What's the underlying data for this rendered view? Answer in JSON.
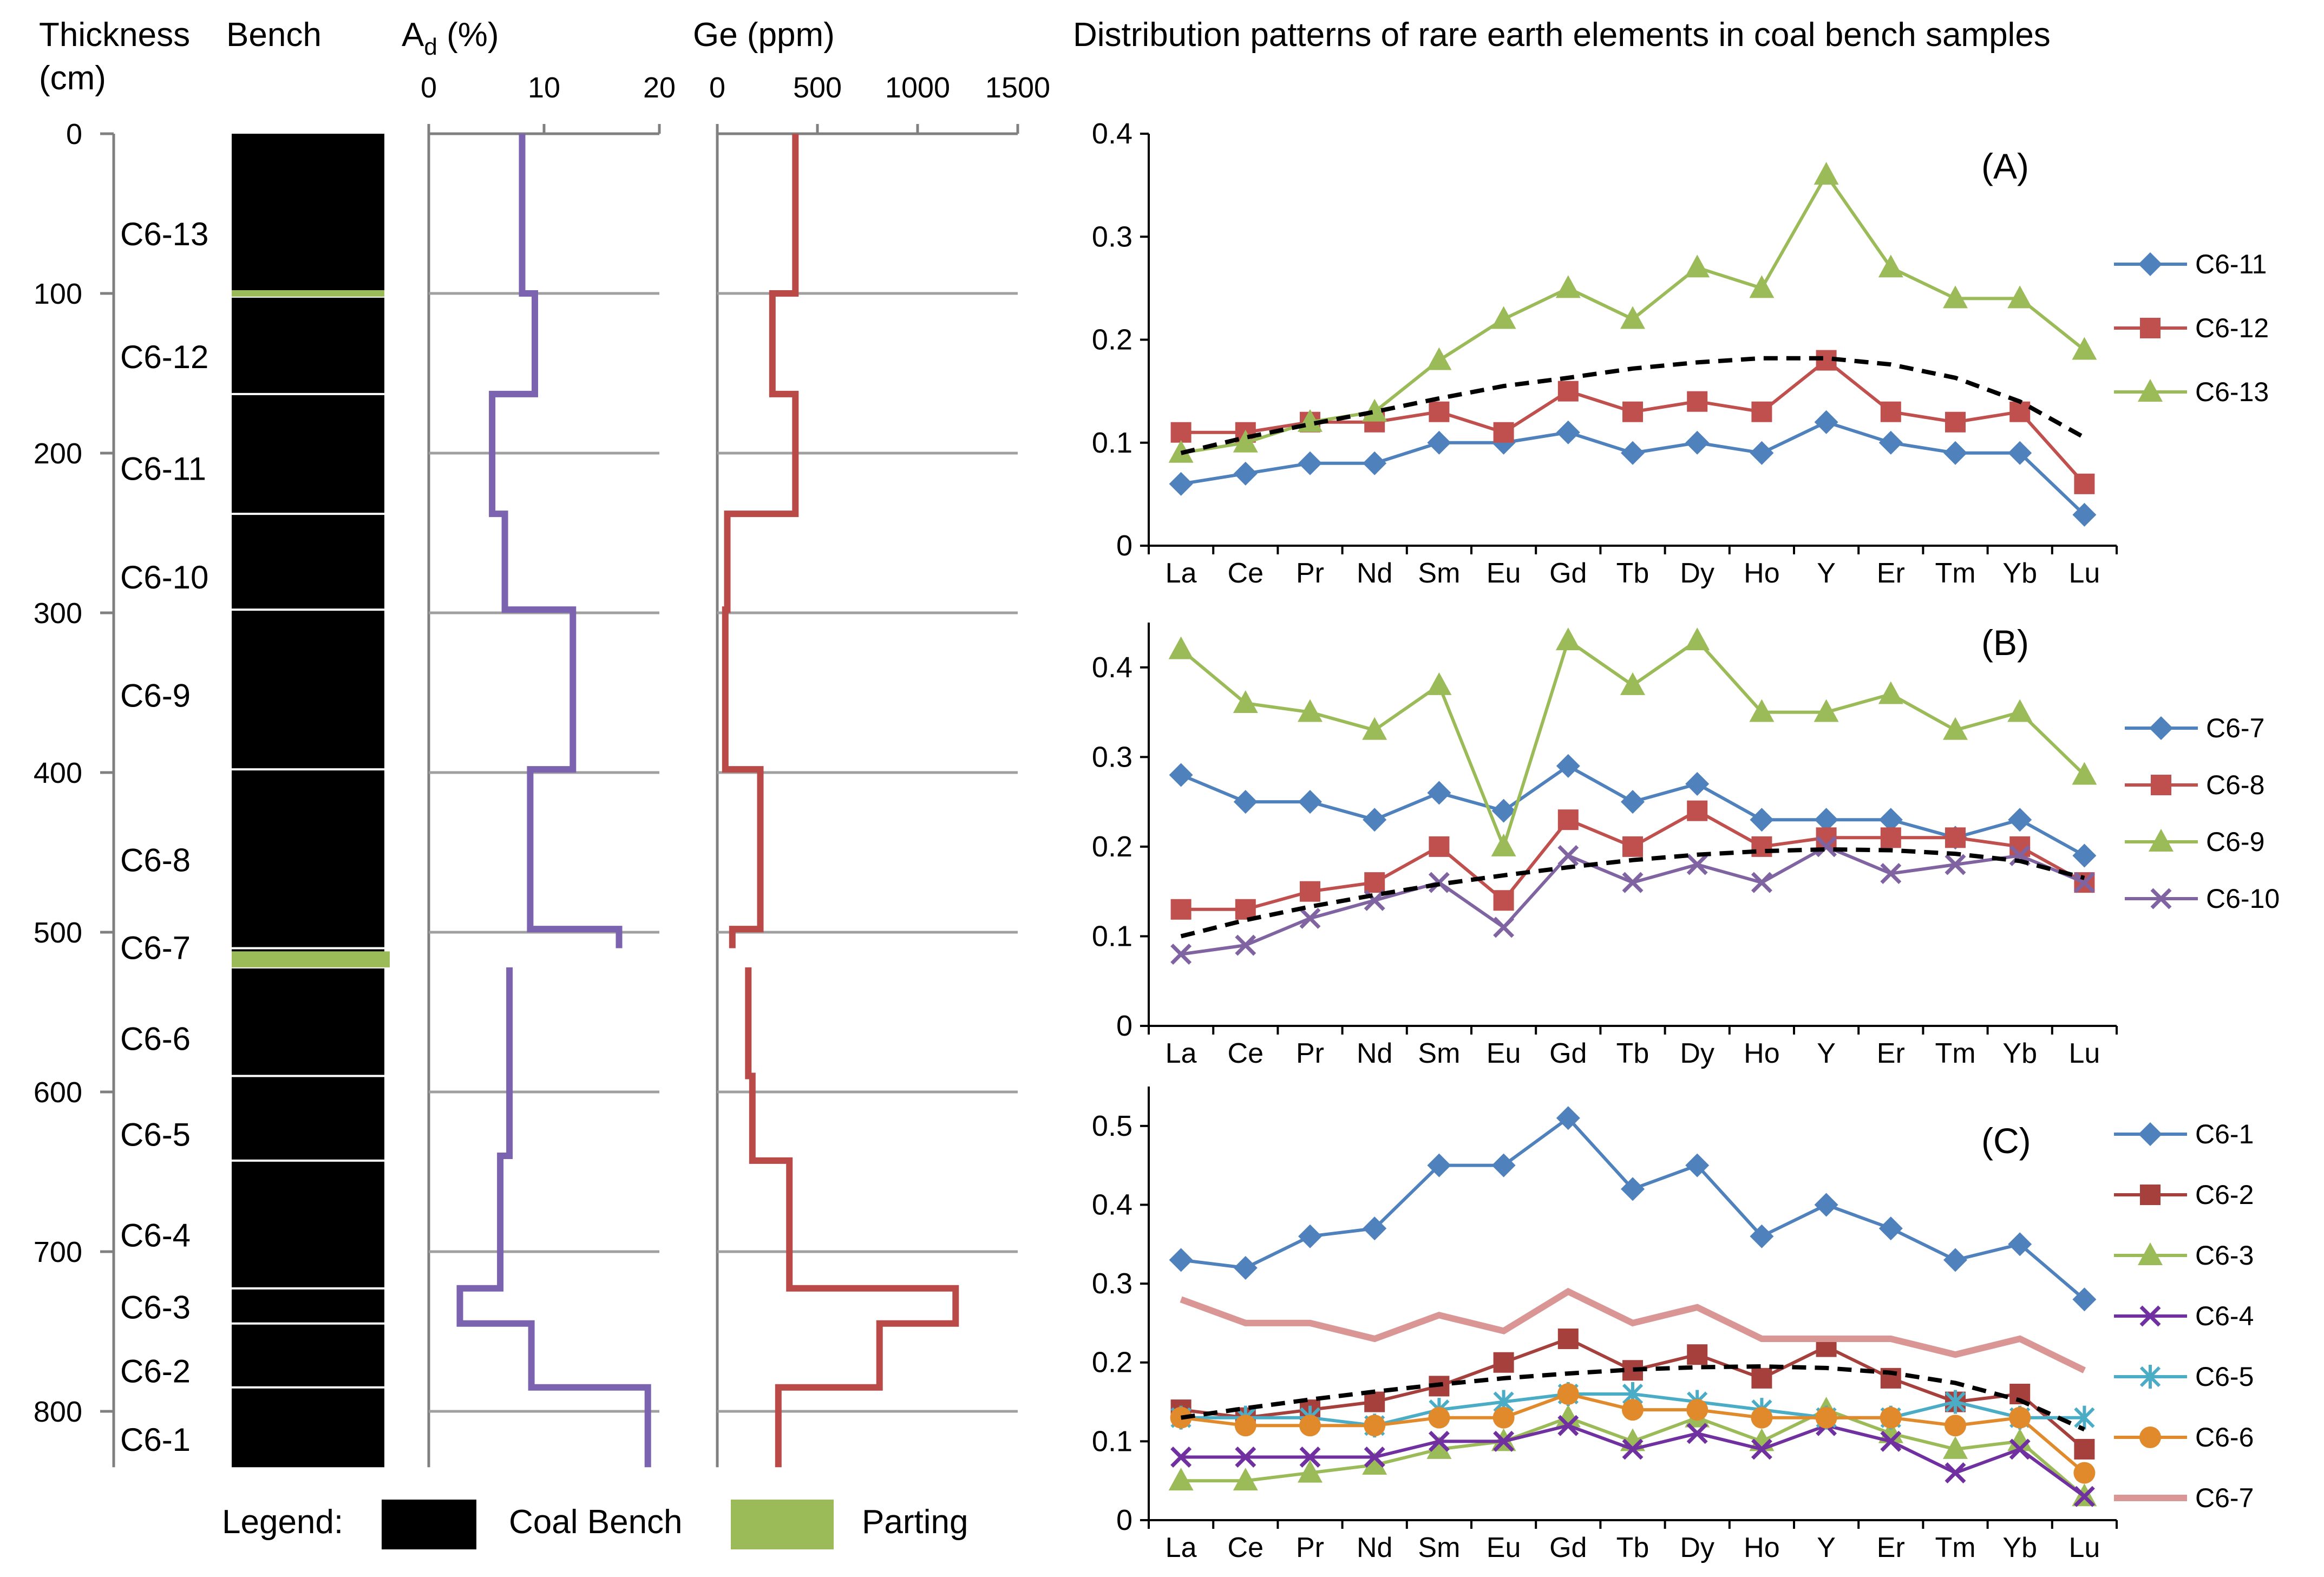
{
  "title": "Distribution patterns of rare earth elements in coal bench samples",
  "column_profile": {
    "headers": {
      "thickness": "Thickness",
      "thickness_unit": "(cm)",
      "bench": "Bench",
      "ash_prefix": "A",
      "ash_sub": "d",
      "ash_unit": " (%)",
      "ge": "Ge (ppm)"
    },
    "depth_ticks": [
      0,
      100,
      200,
      300,
      400,
      500,
      600,
      700,
      800
    ],
    "ash_ticks": [
      0,
      10,
      20
    ],
    "ge_ticks": [
      0,
      500,
      1000,
      1500
    ],
    "benches": [
      {
        "name": "C6-13",
        "top": 0,
        "bottom": 98
      },
      {
        "name": "C6-12",
        "top": 102,
        "bottom": 163
      },
      {
        "name": "C6-11",
        "top": 163,
        "bottom": 238
      },
      {
        "name": "C6-10",
        "top": 238,
        "bottom": 298
      },
      {
        "name": "C6-9",
        "top": 298,
        "bottom": 398
      },
      {
        "name": "C6-8",
        "top": 398,
        "bottom": 510
      },
      {
        "name": "C6-7",
        "top": 510,
        "bottom": 512
      },
      {
        "name": "C6-6",
        "top": 522,
        "bottom": 590
      },
      {
        "name": "C6-5",
        "top": 590,
        "bottom": 643
      },
      {
        "name": "C6-4",
        "top": 643,
        "bottom": 723
      },
      {
        "name": "C6-3",
        "top": 723,
        "bottom": 745
      },
      {
        "name": "C6-2",
        "top": 745,
        "bottom": 785
      },
      {
        "name": "C6-1",
        "top": 785,
        "bottom": 835
      }
    ],
    "partings": [
      {
        "top": 98,
        "bottom": 102
      },
      {
        "top": 512,
        "bottom": 522
      }
    ],
    "legend": {
      "label": "Legend:",
      "coal": "Coal Bench",
      "parting": "Parting"
    },
    "colors": {
      "coal": "#000000",
      "parting": "#9bbb59",
      "ash": "#7b63b0",
      "ge": "#b94a48"
    }
  },
  "chart_data": [
    {
      "type": "line",
      "id": "A",
      "title": "Distribution patterns of rare earth elements in coal bench samples",
      "label": "(A)",
      "categories": [
        "La",
        "Ce",
        "Pr",
        "Nd",
        "Sm",
        "Eu",
        "Gd",
        "Tb",
        "Dy",
        "Ho",
        "Y",
        "Er",
        "Tm",
        "Yb",
        "Lu"
      ],
      "ylim": [
        0,
        0.4
      ],
      "yticks": [
        0,
        0.1,
        0.2,
        0.3,
        0.4
      ],
      "ytick_labels": [
        "0",
        "0.1",
        "0.2",
        "0.3",
        "0.4"
      ],
      "series": [
        {
          "name": "C6-11",
          "color": "#4f81bd",
          "marker": "diamond",
          "values": [
            0.06,
            0.07,
            0.08,
            0.08,
            0.1,
            0.1,
            0.11,
            0.09,
            0.1,
            0.09,
            0.12,
            0.1,
            0.09,
            0.09,
            0.03
          ]
        },
        {
          "name": "C6-12",
          "color": "#c0504d",
          "marker": "square",
          "values": [
            0.11,
            0.11,
            0.12,
            0.12,
            0.13,
            0.11,
            0.15,
            0.13,
            0.14,
            0.13,
            0.18,
            0.13,
            0.12,
            0.13,
            0.06
          ]
        },
        {
          "name": "C6-13",
          "color": "#9bbb59",
          "marker": "triangle",
          "values": [
            0.09,
            0.1,
            0.12,
            0.13,
            0.18,
            0.22,
            0.25,
            0.22,
            0.27,
            0.25,
            0.36,
            0.27,
            0.24,
            0.24,
            0.19
          ]
        }
      ],
      "trend": [
        0.09,
        0.105,
        0.118,
        0.13,
        0.143,
        0.155,
        0.163,
        0.172,
        0.178,
        0.182,
        0.182,
        0.176,
        0.163,
        0.14,
        0.105
      ]
    },
    {
      "type": "line",
      "id": "B",
      "label": "(B)",
      "categories": [
        "La",
        "Ce",
        "Pr",
        "Nd",
        "Sm",
        "Eu",
        "Gd",
        "Tb",
        "Dy",
        "Ho",
        "Y",
        "Er",
        "Tm",
        "Yb",
        "Lu"
      ],
      "ylim": [
        0,
        0.45
      ],
      "yticks": [
        0,
        0.1,
        0.2,
        0.3,
        0.4
      ],
      "ytick_labels": [
        "0",
        "0.1",
        "0.2",
        "0.3",
        "0.4"
      ],
      "series": [
        {
          "name": "C6-7",
          "color": "#4f81bd",
          "marker": "diamond",
          "values": [
            0.28,
            0.25,
            0.25,
            0.23,
            0.26,
            0.24,
            0.29,
            0.25,
            0.27,
            0.23,
            0.23,
            0.23,
            0.21,
            0.23,
            0.19
          ]
        },
        {
          "name": "C6-8",
          "color": "#c0504d",
          "marker": "square",
          "values": [
            0.13,
            0.13,
            0.15,
            0.16,
            0.2,
            0.14,
            0.23,
            0.2,
            0.24,
            0.2,
            0.21,
            0.21,
            0.21,
            0.2,
            0.16
          ]
        },
        {
          "name": "C6-9",
          "color": "#9bbb59",
          "marker": "triangle",
          "values": [
            0.42,
            0.36,
            0.35,
            0.33,
            0.38,
            0.2,
            0.43,
            0.38,
            0.43,
            0.35,
            0.35,
            0.37,
            0.33,
            0.35,
            0.28
          ]
        },
        {
          "name": "C6-10",
          "color": "#8064a2",
          "marker": "x",
          "values": [
            0.08,
            0.09,
            0.12,
            0.14,
            0.16,
            0.11,
            0.19,
            0.16,
            0.18,
            0.16,
            0.2,
            0.17,
            0.18,
            0.19,
            0.16
          ]
        }
      ],
      "trend": [
        0.1,
        0.118,
        0.133,
        0.146,
        0.158,
        0.168,
        0.177,
        0.185,
        0.191,
        0.195,
        0.197,
        0.196,
        0.192,
        0.184,
        0.165
      ]
    },
    {
      "type": "line",
      "id": "C",
      "label": "(C)",
      "categories": [
        "La",
        "Ce",
        "Pr",
        "Nd",
        "Sm",
        "Eu",
        "Gd",
        "Tb",
        "Dy",
        "Ho",
        "Y",
        "Er",
        "Tm",
        "Yb",
        "Lu"
      ],
      "ylim": [
        0,
        0.55
      ],
      "yticks": [
        0,
        0.1,
        0.2,
        0.3,
        0.4,
        0.5
      ],
      "ytick_labels": [
        "0",
        "0.1",
        "0.2",
        "0.3",
        "0.4",
        "0.5"
      ],
      "series": [
        {
          "name": "C6-1",
          "color": "#4f81bd",
          "marker": "diamond",
          "values": [
            0.33,
            0.32,
            0.36,
            0.37,
            0.45,
            0.45,
            0.51,
            0.42,
            0.45,
            0.36,
            0.4,
            0.37,
            0.33,
            0.35,
            0.28
          ]
        },
        {
          "name": "C6-2",
          "color": "#a5403d",
          "marker": "square",
          "values": [
            0.14,
            0.13,
            0.14,
            0.15,
            0.17,
            0.2,
            0.23,
            0.19,
            0.21,
            0.18,
            0.22,
            0.18,
            0.15,
            0.16,
            0.09
          ]
        },
        {
          "name": "C6-3",
          "color": "#9bbb59",
          "marker": "triangle",
          "values": [
            0.05,
            0.05,
            0.06,
            0.07,
            0.09,
            0.1,
            0.13,
            0.1,
            0.13,
            0.1,
            0.14,
            0.11,
            0.09,
            0.1,
            0.03
          ]
        },
        {
          "name": "C6-4",
          "color": "#7030a0",
          "marker": "x",
          "values": [
            0.08,
            0.08,
            0.08,
            0.08,
            0.1,
            0.1,
            0.12,
            0.09,
            0.11,
            0.09,
            0.12,
            0.1,
            0.06,
            0.09,
            0.03
          ]
        },
        {
          "name": "C6-5",
          "color": "#4bacc6",
          "marker": "star",
          "values": [
            0.13,
            0.13,
            0.13,
            0.12,
            0.14,
            0.15,
            0.16,
            0.16,
            0.15,
            0.14,
            0.13,
            0.13,
            0.15,
            0.13,
            0.13
          ]
        },
        {
          "name": "C6-6",
          "color": "#e08a2c",
          "marker": "circle",
          "values": [
            0.13,
            0.12,
            0.12,
            0.12,
            0.13,
            0.13,
            0.16,
            0.14,
            0.14,
            0.13,
            0.13,
            0.13,
            0.12,
            0.13,
            0.06
          ]
        },
        {
          "name": "C6-7",
          "color": "#d99694",
          "marker": "none",
          "values": [
            0.28,
            0.25,
            0.25,
            0.23,
            0.26,
            0.24,
            0.29,
            0.25,
            0.27,
            0.23,
            0.23,
            0.23,
            0.21,
            0.23,
            0.19
          ]
        }
      ],
      "trend": [
        0.13,
        0.142,
        0.153,
        0.163,
        0.172,
        0.18,
        0.186,
        0.191,
        0.194,
        0.195,
        0.193,
        0.187,
        0.174,
        0.152,
        0.115
      ]
    }
  ]
}
